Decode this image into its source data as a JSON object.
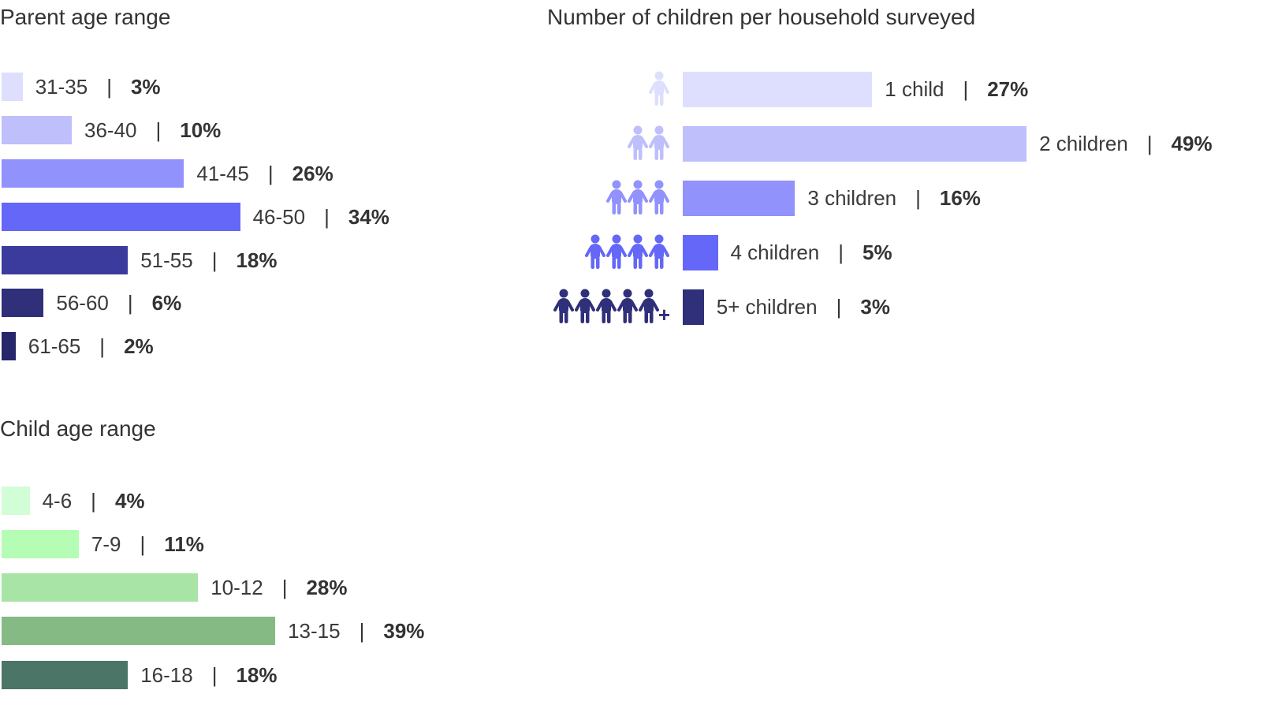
{
  "chart_data": [
    {
      "type": "bar",
      "orientation": "horizontal",
      "title": "Parent age range",
      "categories": [
        "31-35",
        "36-40",
        "41-45",
        "46-50",
        "51-55",
        "56-60",
        "61-65"
      ],
      "values": [
        3,
        10,
        26,
        34,
        18,
        6,
        2
      ],
      "value_labels": [
        "3%",
        "10%",
        "26%",
        "34%",
        "18%",
        "6%",
        "2%"
      ],
      "separator": "|",
      "colors": [
        "#DEDFFE",
        "#BFBFFC",
        "#9192FB",
        "#6467F8",
        "#3B3B9E",
        "#2F2F7A",
        "#26266A"
      ],
      "unit": "%"
    },
    {
      "type": "bar",
      "orientation": "horizontal",
      "title": "Child age range",
      "categories": [
        "4-6",
        "7-9",
        "10-12",
        "13-15",
        "16-18"
      ],
      "values": [
        4,
        11,
        28,
        39,
        18
      ],
      "value_labels": [
        "4%",
        "11%",
        "28%",
        "39%",
        "18%"
      ],
      "separator": "|",
      "colors": [
        "#D1FDD7",
        "#B5FDB4",
        "#A8E4A5",
        "#85BA85",
        "#4B7566"
      ],
      "unit": "%"
    },
    {
      "type": "bar",
      "orientation": "horizontal",
      "title": "Number of children per household surveyed",
      "categories": [
        "1 child",
        "2 children",
        "3 children",
        "4 children",
        "5+ children"
      ],
      "values": [
        27,
        49,
        16,
        5,
        3
      ],
      "value_labels": [
        "27%",
        "49%",
        "16%",
        "5%",
        "3%"
      ],
      "separator": "|",
      "colors": [
        "#DEDFFE",
        "#BFBFFC",
        "#9192FB",
        "#6467F8",
        "#2F2F7A"
      ],
      "icon": "child-figure-icon",
      "icon_counts": [
        1,
        2,
        3,
        4,
        5
      ],
      "icon_plus": [
        false,
        false,
        false,
        false,
        true
      ],
      "unit": "%"
    }
  ]
}
